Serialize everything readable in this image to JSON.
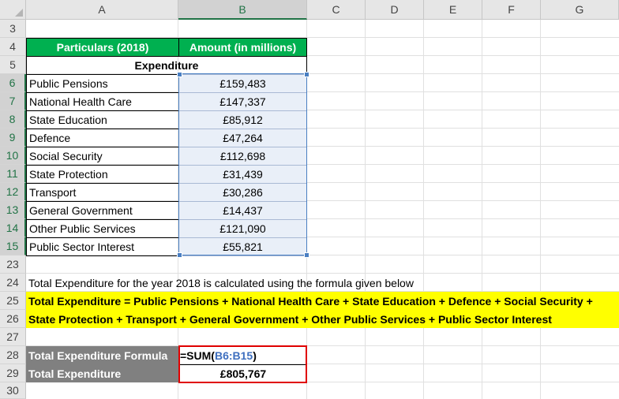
{
  "columns": [
    "A",
    "B",
    "C",
    "D",
    "E",
    "F",
    "G"
  ],
  "rows": [
    "3",
    "4",
    "5",
    "6",
    "7",
    "8",
    "9",
    "10",
    "11",
    "12",
    "13",
    "14",
    "15",
    "23",
    "24",
    "25",
    "26",
    "27",
    "28",
    "29",
    "30"
  ],
  "table": {
    "header_particulars": "Particulars (2018)",
    "header_amount": "Amount (in millions)",
    "section": "Expenditure",
    "items": [
      {
        "label": "Public Pensions",
        "value": "£159,483"
      },
      {
        "label": "National Health Care",
        "value": "£147,337"
      },
      {
        "label": "State Education",
        "value": "£85,912"
      },
      {
        "label": "Defence",
        "value": "£47,264"
      },
      {
        "label": "Social Security",
        "value": "£112,698"
      },
      {
        "label": "State Protection",
        "value": "£31,439"
      },
      {
        "label": "Transport",
        "value": "£30,286"
      },
      {
        "label": "General Government",
        "value": "£14,437"
      },
      {
        "label": "Other Public Services",
        "value": "£121,090"
      },
      {
        "label": "Public Sector Interest",
        "value": "£55,821"
      }
    ]
  },
  "notes": {
    "row24": "Total Expenditure for the year 2018 is calculated using the formula given below",
    "row25": "Total Expenditure = Public Pensions + National Health Care + State Education + Defence + Social Security +",
    "row26": "State Protection + Transport + General Government + Other Public Services + Public Sector Interest"
  },
  "summary": {
    "formula_label": "Total Expenditure Formula",
    "formula_prefix": "=SUM(",
    "formula_ref": "B6:B15",
    "formula_suffix": ")",
    "total_label": "Total Expenditure",
    "total_value": "£805,767"
  },
  "colors": {
    "header_green": "#00b050",
    "highlight_yellow": "#ffff00",
    "label_gray": "#808080",
    "ref_blue": "#3e6fbf",
    "box_red": "#e00000"
  }
}
